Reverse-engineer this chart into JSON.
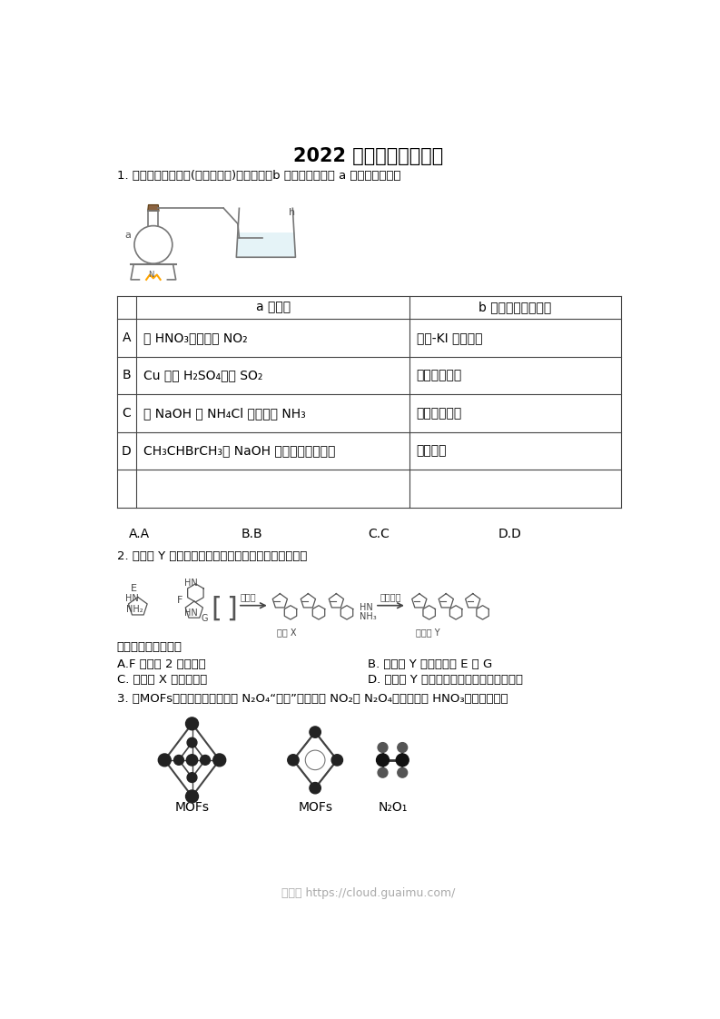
{
  "title": "2022 年北京卷部分试题",
  "bg_color": "#ffffff",
  "text_color": "#000000",
  "footer_text": "龙云网 https://cloud.guaimu.com/",
  "footer_color": "#aaaaaa",
  "q1_text": "1. 利用如图所示装置(夹持装置略)进行实验，b 中现象不能证明 a 中产物生成的是",
  "table_col2_header": "a 中反应",
  "table_col3_header": "b 中检测试剂及现象",
  "table_rows": [
    [
      "A",
      "濃 HNO₃分解生成 NO₂",
      "淠粉-KI 溶液变蓝"
    ],
    [
      "B",
      "Cu 与濃 H₂SO₄生成 SO₂",
      "品红溶液褮色"
    ],
    [
      "C",
      "濃 NaOH 与 NH₄Cl 溶液生成 NH₃",
      "酩鷥溶液变红"
    ],
    [
      "D",
      "CH₃CHBrCH₃与 NaOH 乙醇溶液生成丙烯",
      "渴水褮色"
    ]
  ],
  "q1_options": [
    "A.A",
    "B.B",
    "C.C",
    "D.D"
  ],
  "q2_text": "2. 高分子 Y 是一种人工合成的多肽，其合成路线如下。",
  "q2_wrong_label": "下列说法不正确的是",
  "q2_opt_A": "A.F 中含有 2 个酰胺基",
  "q2_opt_B": "B. 高分子 Y 水解可得到 E 和 G",
  "q2_opt_C": "C. 高分子 X 中存在氢键",
  "q2_opt_D": "D. 高分子 Y 的合成过程中进行了官能团保护",
  "q3_text": "3. 某MOFs的多孔材料刚好可将 N₂O₄“固定”，实现了 NO₂与 N₂O₄分离并制备 HNO₃，如图所示：",
  "q3_label_mofs": "MOFs",
  "q3_label_n2o4": "N₂O₁"
}
